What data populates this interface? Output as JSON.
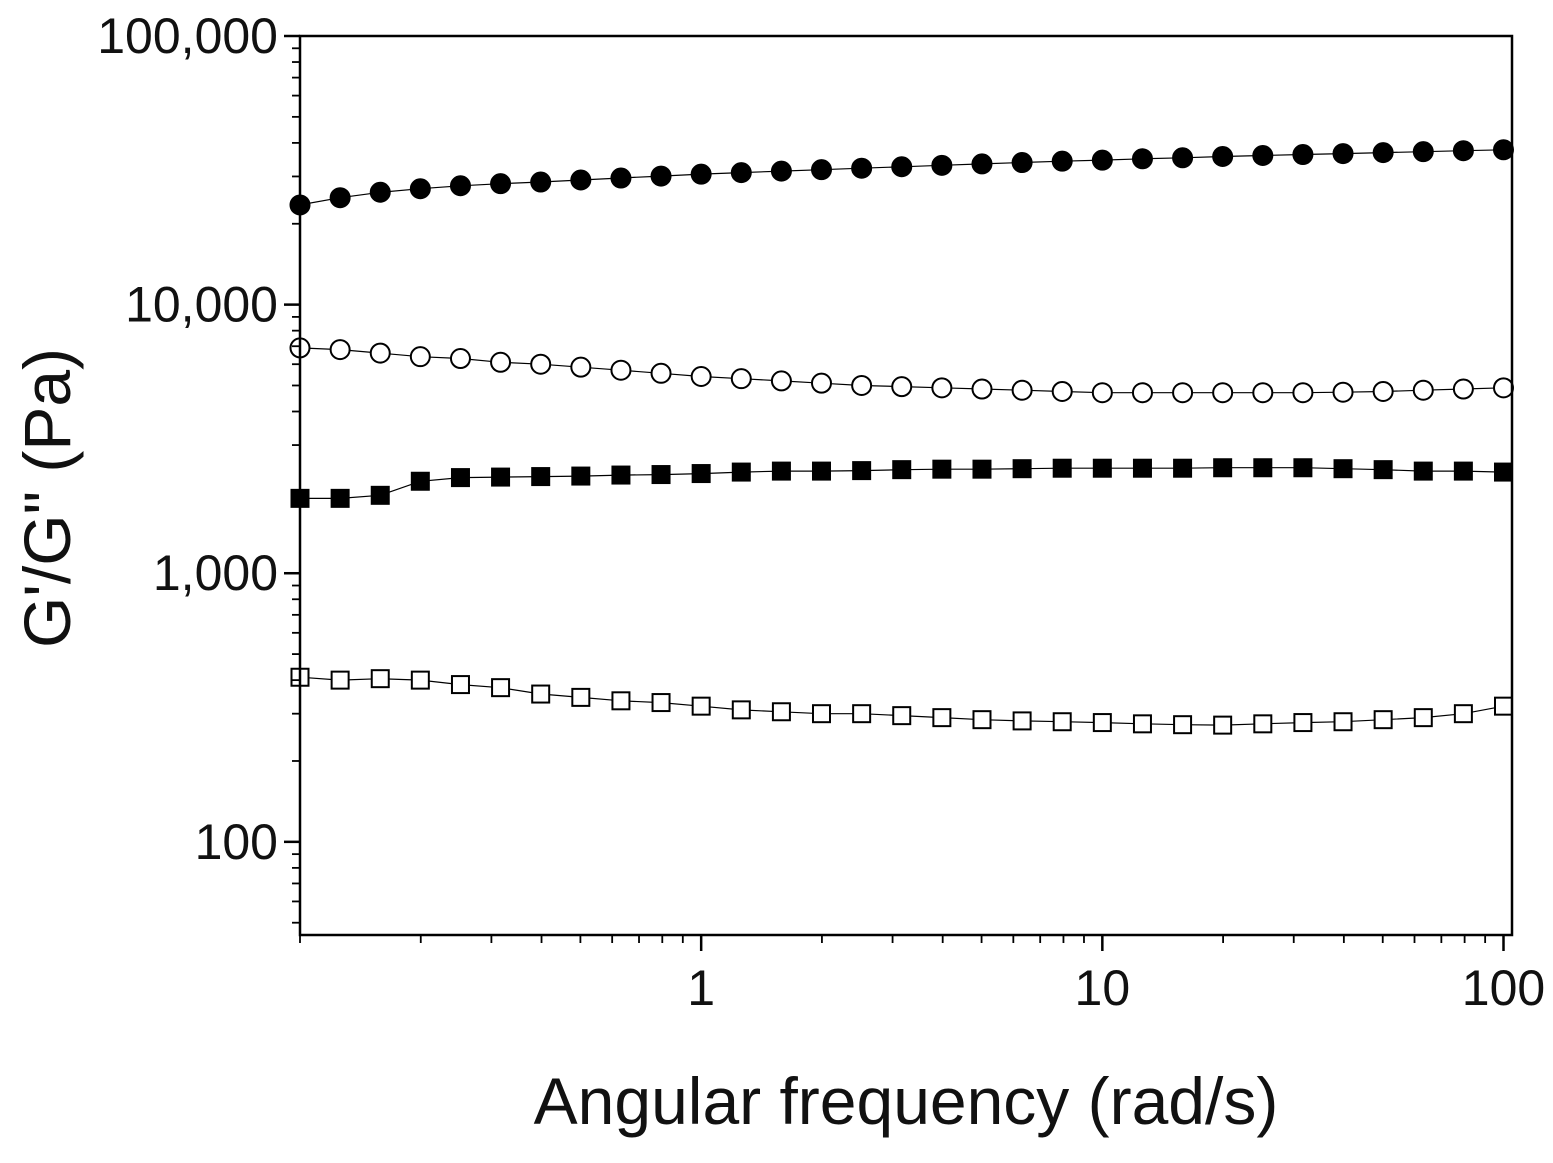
{
  "chart_data": {
    "type": "scatter",
    "title": "",
    "xlabel": "Angular frequency (rad/s)",
    "ylabel": "G'/G\" (Pa)",
    "x_scale": "log",
    "y_scale": "log",
    "xlim": [
      0.1,
      105
    ],
    "ylim": [
      45,
      100000
    ],
    "x_ticks": [
      {
        "value": 1,
        "label": "1"
      },
      {
        "value": 10,
        "label": "10"
      },
      {
        "value": 100,
        "label": "100"
      }
    ],
    "y_ticks": [
      {
        "value": 100,
        "label": "100"
      },
      {
        "value": 1000,
        "label": "1,000"
      },
      {
        "value": 10000,
        "label": "10,000"
      },
      {
        "value": 100000,
        "label": "100,000"
      }
    ],
    "grid": false,
    "legend": "none",
    "x": [
      0.1,
      0.1259,
      0.1585,
      0.1995,
      0.2512,
      0.3162,
      0.3981,
      0.5012,
      0.631,
      0.7943,
      1,
      1.259,
      1.585,
      1.995,
      2.512,
      3.162,
      3.981,
      5.012,
      6.31,
      7.943,
      10,
      12.59,
      15.85,
      19.95,
      25.12,
      31.62,
      39.81,
      50.12,
      63.1,
      79.43,
      100
    ],
    "series": [
      {
        "marker": "filled-circle",
        "color": "#000000",
        "values": [
          23500,
          25000,
          26200,
          27000,
          27700,
          28200,
          28600,
          29100,
          29600,
          30100,
          30600,
          31000,
          31400,
          31800,
          32200,
          32600,
          33000,
          33400,
          33800,
          34200,
          34500,
          34900,
          35200,
          35600,
          35900,
          36200,
          36500,
          36800,
          37100,
          37400,
          37700
        ]
      },
      {
        "marker": "open-circle",
        "color": "#000000",
        "values": [
          6900,
          6800,
          6600,
          6400,
          6300,
          6100,
          6000,
          5850,
          5700,
          5550,
          5400,
          5300,
          5200,
          5100,
          5000,
          4950,
          4900,
          4850,
          4800,
          4750,
          4700,
          4700,
          4700,
          4700,
          4700,
          4700,
          4720,
          4750,
          4800,
          4850,
          4900
        ]
      },
      {
        "marker": "filled-square",
        "color": "#000000",
        "values": [
          1900,
          1900,
          1950,
          2200,
          2270,
          2280,
          2290,
          2300,
          2320,
          2330,
          2350,
          2380,
          2400,
          2400,
          2410,
          2430,
          2440,
          2440,
          2450,
          2460,
          2460,
          2460,
          2460,
          2470,
          2470,
          2470,
          2450,
          2430,
          2400,
          2400,
          2380
        ]
      },
      {
        "marker": "open-square",
        "color": "#000000",
        "values": [
          410,
          400,
          405,
          400,
          385,
          375,
          355,
          345,
          335,
          330,
          320,
          310,
          305,
          300,
          300,
          295,
          290,
          285,
          282,
          280,
          278,
          275,
          273,
          272,
          275,
          278,
          280,
          285,
          290,
          300,
          320
        ]
      }
    ]
  }
}
